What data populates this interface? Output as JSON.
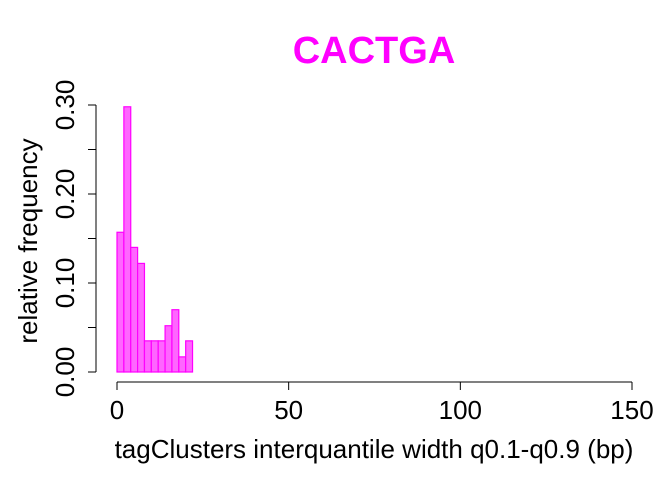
{
  "chart_data": {
    "type": "bar",
    "subtype": "histogram",
    "title": "CACTGA",
    "xlabel": "tagClusters interquantile width q0.1-q0.9 (bp)",
    "ylabel": "relative frequency",
    "xlim": [
      0,
      150
    ],
    "ylim": [
      0,
      0.3
    ],
    "x_ticks": [
      0,
      50,
      100,
      150
    ],
    "x_tick_labels": [
      "0",
      "50",
      "100",
      "150"
    ],
    "y_ticks": [
      0,
      0.05,
      0.1,
      0.15,
      0.2,
      0.25,
      0.3
    ],
    "y_tick_labels": [
      "0.00",
      "",
      "0.10",
      "",
      "0.20",
      "",
      "0.30"
    ],
    "bin_width": 2,
    "bins": [
      {
        "x0": 0,
        "x1": 2,
        "value": 0.157
      },
      {
        "x0": 2,
        "x1": 4,
        "value": 0.298
      },
      {
        "x0": 4,
        "x1": 6,
        "value": 0.14
      },
      {
        "x0": 6,
        "x1": 8,
        "value": 0.122
      },
      {
        "x0": 8,
        "x1": 10,
        "value": 0.035
      },
      {
        "x0": 10,
        "x1": 12,
        "value": 0.035
      },
      {
        "x0": 12,
        "x1": 14,
        "value": 0.035
      },
      {
        "x0": 14,
        "x1": 16,
        "value": 0.052
      },
      {
        "x0": 16,
        "x1": 18,
        "value": 0.07
      },
      {
        "x0": 18,
        "x1": 20,
        "value": 0.017
      },
      {
        "x0": 20,
        "x1": 22,
        "value": 0.035
      }
    ],
    "grid": false,
    "colors": {
      "title": "#ff00ff",
      "bar_fill": "#ff66ff",
      "bar_stroke": "#ff00ff",
      "axis": "#000000",
      "text": "#000000"
    }
  }
}
